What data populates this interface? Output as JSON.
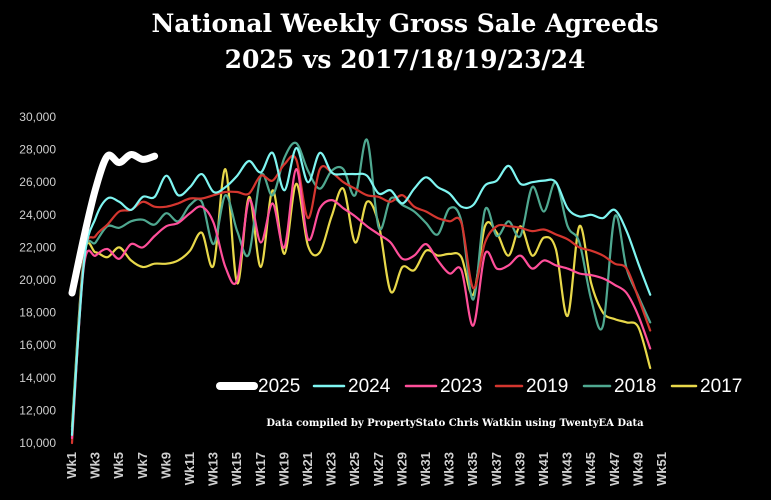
{
  "chart_data": {
    "type": "line",
    "title": "National Weekly Gross Sale Agreeds",
    "subtitle": "2025 vs 2017/18/19/23/24",
    "note": "Data compiled by PropertyStato Chris Watkin using TwentyEA Data",
    "ylim": [
      10000,
      30000
    ],
    "yticks": [
      10000,
      12000,
      14000,
      16000,
      18000,
      20000,
      22000,
      24000,
      26000,
      28000,
      30000
    ],
    "ytick_labels": [
      "10,000",
      "12,000",
      "14,000",
      "16,000",
      "18,000",
      "20,000",
      "22,000",
      "24,000",
      "26,000",
      "28,000",
      "30,000"
    ],
    "xlim": [
      1,
      51
    ],
    "xticks": [
      1,
      3,
      5,
      7,
      9,
      11,
      13,
      15,
      17,
      19,
      21,
      23,
      25,
      27,
      29,
      31,
      33,
      35,
      37,
      39,
      41,
      43,
      45,
      47,
      49,
      51
    ],
    "xtick_labels": [
      "Wk1",
      "Wk3",
      "Wk5",
      "Wk7",
      "Wk9",
      "Wk11",
      "Wk13",
      "Wk15",
      "Wk17",
      "Wk19",
      "Wk21",
      "Wk23",
      "Wk25",
      "Wk27",
      "Wk29",
      "Wk31",
      "Wk33",
      "Wk35",
      "Wk37",
      "Wk39",
      "Wk41",
      "Wk43",
      "Wk45",
      "Wk47",
      "Wk49",
      "Wk51"
    ],
    "legend_position": "bottom-right",
    "grid": false,
    "series": [
      {
        "name": "2025",
        "color": "#ffffff",
        "width": 7,
        "x": [
          1,
          2,
          3,
          4,
          5,
          6,
          7,
          8
        ],
        "values": [
          19200,
          22600,
          25600,
          27600,
          27200,
          27700,
          27400,
          27600
        ]
      },
      {
        "name": "2024",
        "color": "#7ff5f1",
        "width": 2.2,
        "x": [
          1,
          2,
          3,
          4,
          5,
          6,
          7,
          8,
          9,
          10,
          11,
          12,
          13,
          14,
          15,
          16,
          17,
          18,
          19,
          20,
          21,
          22,
          23,
          24,
          25,
          26,
          27,
          28,
          29,
          30,
          31,
          32,
          33,
          34,
          35,
          36,
          37,
          38,
          39,
          40,
          41,
          42,
          43,
          44,
          45,
          46,
          47,
          48,
          49,
          50
        ],
        "values": [
          10500,
          21000,
          23800,
          25000,
          24800,
          24300,
          25100,
          25100,
          26400,
          25200,
          25700,
          26500,
          25400,
          25700,
          26400,
          27300,
          26600,
          27800,
          25500,
          28100,
          26000,
          27800,
          26600,
          26500,
          26500,
          26400,
          25300,
          25500,
          24700,
          25600,
          26300,
          25700,
          25300,
          24500,
          24600,
          25800,
          26100,
          27000,
          25900,
          26000,
          26100,
          26000,
          24400,
          23900,
          24000,
          23800,
          24300,
          23000,
          21000,
          19100
        ]
      },
      {
        "name": "2023",
        "color": "#ff4f9a",
        "width": 2.2,
        "x": [
          1,
          2,
          3,
          4,
          5,
          6,
          7,
          8,
          9,
          10,
          11,
          12,
          13,
          14,
          15,
          16,
          17,
          18,
          19,
          20,
          21,
          22,
          23,
          24,
          25,
          26,
          27,
          28,
          29,
          30,
          31,
          32,
          33,
          34,
          35,
          36,
          37,
          38,
          39,
          40,
          41,
          42,
          43,
          44,
          45,
          46,
          47,
          48,
          49,
          50
        ],
        "values": [
          10300,
          20800,
          21500,
          21900,
          21300,
          22200,
          22000,
          22700,
          23300,
          23500,
          24100,
          24500,
          23500,
          20800,
          20000,
          24900,
          22300,
          24700,
          22000,
          26800,
          22500,
          24400,
          24900,
          24400,
          23900,
          23300,
          22800,
          22300,
          21300,
          21500,
          22200,
          21200,
          20400,
          20600,
          17200,
          21600,
          20700,
          20900,
          21500,
          20700,
          21200,
          20900,
          20700,
          20400,
          20300,
          20100,
          19700,
          19200,
          17800,
          15800
        ]
      },
      {
        "name": "2019",
        "color": "#d4362f",
        "width": 2.2,
        "x": [
          1,
          2,
          3,
          4,
          5,
          6,
          7,
          8,
          9,
          10,
          11,
          12,
          13,
          14,
          15,
          16,
          17,
          18,
          19,
          20,
          21,
          22,
          23,
          24,
          25,
          26,
          27,
          28,
          29,
          30,
          31,
          32,
          33,
          34,
          35,
          36,
          37,
          38,
          39,
          40,
          41,
          42,
          43,
          44,
          45,
          46,
          47,
          48,
          49,
          50
        ],
        "values": [
          10000,
          21200,
          22700,
          23400,
          24200,
          24300,
          24800,
          24500,
          24500,
          24700,
          25000,
          25000,
          25200,
          25400,
          25400,
          25300,
          26400,
          26100,
          27100,
          27400,
          23800,
          26800,
          26600,
          26000,
          25600,
          25200,
          25100,
          24800,
          25200,
          24500,
          24200,
          23800,
          23600,
          23500,
          19500,
          22300,
          23300,
          23300,
          23200,
          23000,
          23100,
          22800,
          22500,
          22000,
          21800,
          21500,
          21000,
          20700,
          18900,
          16900
        ]
      },
      {
        "name": "2018",
        "color": "#4fa890",
        "width": 2.2,
        "x": [
          1,
          2,
          3,
          4,
          5,
          6,
          7,
          8,
          9,
          10,
          11,
          12,
          13,
          14,
          15,
          16,
          17,
          18,
          19,
          20,
          21,
          22,
          23,
          24,
          25,
          26,
          27,
          28,
          29,
          30,
          31,
          32,
          33,
          34,
          35,
          36,
          37,
          38,
          39,
          40,
          41,
          42,
          43,
          44,
          45,
          46,
          47,
          48,
          49,
          50
        ],
        "values": [
          10800,
          21300,
          22300,
          23300,
          23200,
          23600,
          23700,
          23400,
          24100,
          23600,
          24600,
          24800,
          22200,
          25200,
          23000,
          21600,
          26400,
          25200,
          27500,
          28400,
          26700,
          25600,
          26700,
          26800,
          25200,
          28600,
          23200,
          25000,
          24600,
          24200,
          23500,
          22800,
          24400,
          23600,
          18800,
          24300,
          22700,
          23600,
          22700,
          25700,
          24200,
          26000,
          23300,
          22300,
          18800,
          17200,
          23900,
          20700,
          19000,
          17400
        ]
      },
      {
        "name": "2017",
        "color": "#e8d84a",
        "width": 2.2,
        "x": [
          1,
          2,
          3,
          4,
          5,
          6,
          7,
          8,
          9,
          10,
          11,
          12,
          13,
          14,
          15,
          16,
          17,
          18,
          19,
          20,
          21,
          22,
          23,
          24,
          25,
          26,
          27,
          28,
          29,
          30,
          31,
          32,
          33,
          34,
          35,
          36,
          37,
          38,
          39,
          40,
          41,
          42,
          43,
          44,
          45,
          46,
          47,
          48,
          49,
          50
        ],
        "values": [
          11000,
          21400,
          21700,
          21400,
          22000,
          21200,
          20800,
          21000,
          21000,
          21200,
          21800,
          22900,
          20900,
          26800,
          19800,
          25100,
          20800,
          25500,
          21600,
          25900,
          22100,
          21700,
          23900,
          25600,
          22300,
          24800,
          23400,
          19300,
          20800,
          20600,
          21800,
          21500,
          21600,
          21400,
          19100,
          23300,
          22900,
          21500,
          23300,
          21500,
          22600,
          21900,
          17800,
          23300,
          19800,
          18000,
          17600,
          17400,
          17100,
          14600
        ]
      }
    ]
  }
}
